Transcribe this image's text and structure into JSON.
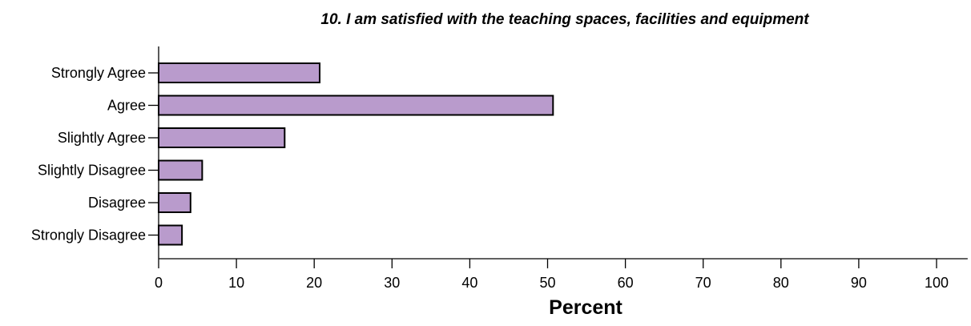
{
  "chart_data": {
    "type": "bar",
    "orientation": "horizontal",
    "title": "10. I am satisfied with the teaching spaces, facilities and equipment",
    "xlabel": "Percent",
    "ylabel": "",
    "categories": [
      "Strongly Agree",
      "Agree",
      "Slightly Agree",
      "Slightly Disagree",
      "Disagree",
      "Strongly Disagree"
    ],
    "values": [
      20.7,
      50.7,
      16.2,
      5.6,
      4.1,
      3.0
    ],
    "xlim": [
      0,
      104
    ],
    "xticks": [
      0,
      10,
      20,
      30,
      40,
      50,
      60,
      70,
      80,
      90,
      100
    ],
    "grid": false,
    "bar_color": "#b99bcc",
    "bar_edge_color": "#000000"
  }
}
